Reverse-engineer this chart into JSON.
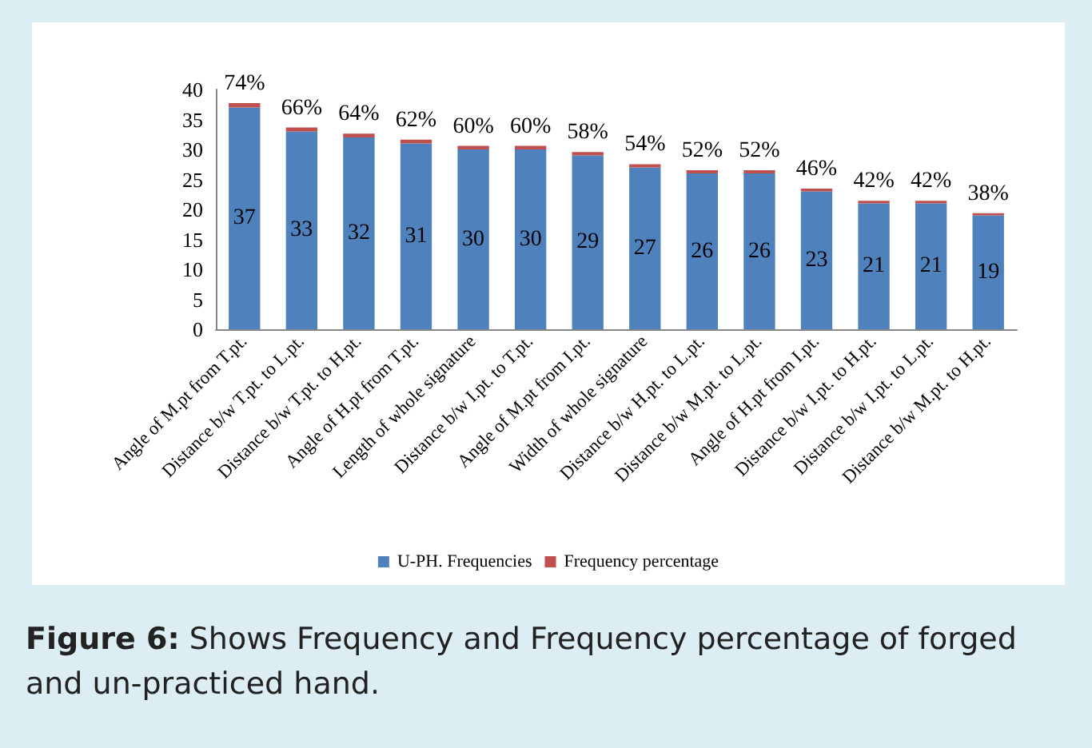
{
  "chart_data": {
    "type": "bar",
    "stacked": true,
    "categories": [
      "Angle of M.pt from T.pt.",
      "Distance b/w T.pt. to L.pt.",
      "Distance b/w T.pt. to H.pt.",
      "Angle of H.pt from T.pt.",
      "Length of whole signature",
      "Distance b/w I.pt. to T.pt.",
      "Angle of M.pt from I.pt.",
      "Width of whole signature",
      "Distance b/w H.pt. to L.pt.",
      "Distance b/w M.pt. to L.pt.",
      "Angle of H.pt from I.pt.",
      "Distance b/w I.pt. to H.pt.",
      "Distance b/w I.pt. to L.pt.",
      "Distance b/w M.pt. to H.pt."
    ],
    "series": [
      {
        "name": "U-PH. Frequencies",
        "color": "#4f81bd",
        "values": [
          37,
          33,
          32,
          31,
          30,
          30,
          29,
          27,
          26,
          26,
          23,
          21,
          21,
          19
        ],
        "value_labels": [
          "37",
          "33",
          "32",
          "31",
          "30",
          "30",
          "29",
          "27",
          "26",
          "26",
          "23",
          "21",
          "21",
          "19"
        ]
      },
      {
        "name": "Frequency percentage",
        "color": "#c0504d",
        "values": [
          0.74,
          0.66,
          0.64,
          0.62,
          0.6,
          0.6,
          0.58,
          0.54,
          0.52,
          0.52,
          0.46,
          0.42,
          0.42,
          0.38
        ],
        "value_labels": [
          "74%",
          "66%",
          "64%",
          "62%",
          "60%",
          "60%",
          "58%",
          "54%",
          "52%",
          "52%",
          "46%",
          "42%",
          "42%",
          "38%"
        ]
      }
    ],
    "ylim": [
      0,
      40
    ],
    "yticks": [
      0,
      5,
      10,
      15,
      20,
      25,
      30,
      35,
      40
    ],
    "grid": false,
    "legend": "bottom",
    "annotations": [
      "Figure 6: Shows Frequency and Frequency percentage of forged and un-practiced hand."
    ]
  }
}
